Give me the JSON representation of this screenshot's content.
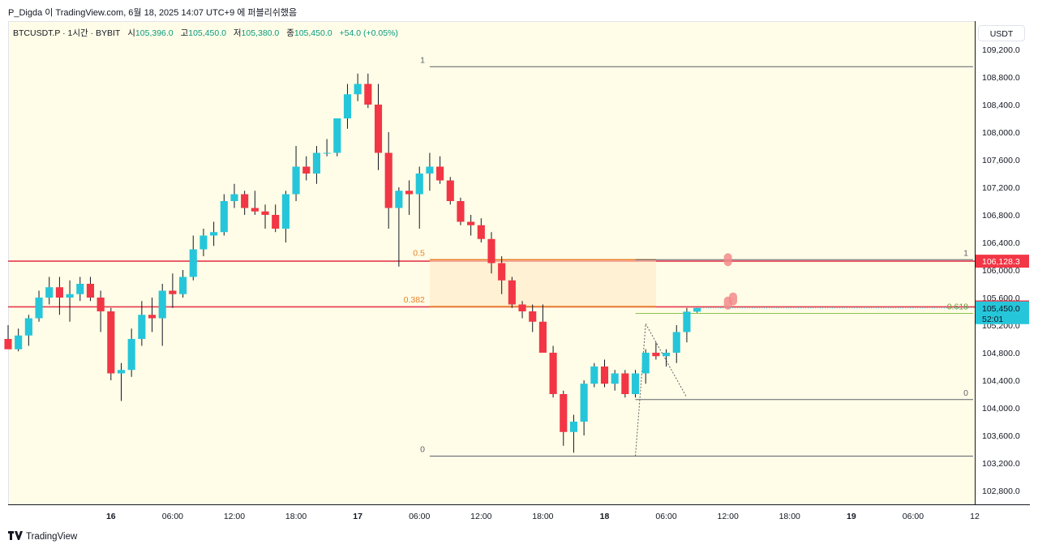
{
  "header": {
    "credit": "P_Digda 이 TradingView.com, 6월 18, 2025 14:07 UTC+9 에 퍼블리쉬했음"
  },
  "legend": {
    "symbol": "BTCUSDT.P · 1시간 · BYBIT",
    "open_label": "시",
    "open": "105,396.0",
    "high_label": "고",
    "high": "105,450.0",
    "low_label": "저",
    "low": "105,380.0",
    "close_label": "종",
    "close": "105,450.0",
    "change": "+54.0 (+0.05%)"
  },
  "currency": "USDT",
  "footer": {
    "logo_text": "TradingView",
    "logo_icon": "tradingview-logo-icon"
  },
  "colors": {
    "up": "#26c6da",
    "down": "#f23645",
    "background": "#fffde7",
    "red_line": "#e5394f",
    "fib_orange": "#e8822a",
    "fib_green": "#8bc34a",
    "price_badge_red": "#f23645",
    "price_badge_cyan": "#26c6da"
  },
  "chart_data": {
    "type": "candlestick",
    "symbol": "BTCUSDT.P",
    "interval": "1시간",
    "exchange": "BYBIT",
    "ylim": [
      102600,
      109600
    ],
    "y_ticks": [
      "109,200.0",
      "108,800.0",
      "108,400.0",
      "108,000.0",
      "107,600.0",
      "107,200.0",
      "106,800.0",
      "106,400.0",
      "106,000.0",
      "105,600.0",
      "105,200.0",
      "104,800.0",
      "104,400.0",
      "104,000.0",
      "103,600.0",
      "103,200.0",
      "102,800.0"
    ],
    "y_tick_values": [
      109200,
      108800,
      108400,
      108000,
      107600,
      107200,
      106800,
      106400,
      106000,
      105600,
      105200,
      104800,
      104400,
      104000,
      103600,
      103200,
      102800
    ],
    "x_range": [
      "2025-06-15 14:00",
      "2025-06-19 12:00"
    ],
    "x_ticks": [
      {
        "time": "2025-06-16 00:00",
        "label": "16",
        "bold": true
      },
      {
        "time": "2025-06-16 06:00",
        "label": "06:00",
        "bold": false
      },
      {
        "time": "2025-06-16 12:00",
        "label": "12:00",
        "bold": false
      },
      {
        "time": "2025-06-16 18:00",
        "label": "18:00",
        "bold": false
      },
      {
        "time": "2025-06-17 00:00",
        "label": "17",
        "bold": true
      },
      {
        "time": "2025-06-17 06:00",
        "label": "06:00",
        "bold": false
      },
      {
        "time": "2025-06-17 12:00",
        "label": "12:00",
        "bold": false
      },
      {
        "time": "2025-06-17 18:00",
        "label": "18:00",
        "bold": false
      },
      {
        "time": "2025-06-18 00:00",
        "label": "18",
        "bold": true
      },
      {
        "time": "2025-06-18 06:00",
        "label": "06:00",
        "bold": false
      },
      {
        "time": "2025-06-18 12:00",
        "label": "12:00",
        "bold": false
      },
      {
        "time": "2025-06-18 18:00",
        "label": "18:00",
        "bold": false
      },
      {
        "time": "2025-06-19 00:00",
        "label": "19",
        "bold": true
      },
      {
        "time": "2025-06-19 06:00",
        "label": "06:00",
        "bold": false
      },
      {
        "time": "2025-06-19 12:00",
        "label": "12",
        "bold": false
      }
    ],
    "candle_start": "2025-06-15 14:00",
    "candles": [
      [
        105000,
        105200,
        104900,
        104850
      ],
      [
        104850,
        105150,
        104820,
        105050
      ],
      [
        105050,
        105350,
        104900,
        105300
      ],
      [
        105300,
        105700,
        105250,
        105600
      ],
      [
        105600,
        105900,
        105500,
        105750
      ],
      [
        105750,
        105900,
        105350,
        105600
      ],
      [
        105600,
        105850,
        105250,
        105650
      ],
      [
        105650,
        105900,
        105550,
        105800
      ],
      [
        105800,
        105900,
        105550,
        105600
      ],
      [
        105600,
        105700,
        105100,
        105400
      ],
      [
        105400,
        105450,
        104400,
        104500
      ],
      [
        104500,
        104650,
        104100,
        104550
      ],
      [
        104550,
        105150,
        104450,
        105000
      ],
      [
        105000,
        105550,
        104900,
        105350
      ],
      [
        105350,
        105600,
        105100,
        105300
      ],
      [
        105300,
        105800,
        104900,
        105700
      ],
      [
        105700,
        105950,
        105450,
        105650
      ],
      [
        105650,
        106000,
        105600,
        105900
      ],
      [
        105900,
        106500,
        105850,
        106300
      ],
      [
        106300,
        106600,
        106200,
        106500
      ],
      [
        106500,
        106700,
        106350,
        106550
      ],
      [
        106550,
        107100,
        106500,
        107000
      ],
      [
        107000,
        107250,
        106900,
        107100
      ],
      [
        107100,
        107150,
        106800,
        106900
      ],
      [
        106900,
        107150,
        106800,
        106850
      ],
      [
        106850,
        106950,
        106600,
        106800
      ],
      [
        106800,
        106950,
        106550,
        106600
      ],
      [
        106600,
        107150,
        106400,
        107100
      ],
      [
        107100,
        107800,
        107000,
        107500
      ],
      [
        107500,
        107650,
        107300,
        107400
      ],
      [
        107400,
        107800,
        107250,
        107700
      ],
      [
        107700,
        107900,
        107650,
        107700
      ],
      [
        107700,
        108200,
        107650,
        108200
      ],
      [
        108200,
        108700,
        108050,
        108550
      ],
      [
        108550,
        108850,
        108450,
        108700
      ],
      [
        108700,
        108850,
        108350,
        108400
      ],
      [
        108400,
        108700,
        107450,
        107700
      ],
      [
        107700,
        108000,
        106600,
        106900
      ],
      [
        106900,
        107200,
        106050,
        107150
      ],
      [
        107150,
        107300,
        106800,
        107100
      ],
      [
        107100,
        107500,
        106600,
        107400
      ],
      [
        107400,
        107700,
        107150,
        107500
      ],
      [
        107500,
        107650,
        107250,
        107300
      ],
      [
        107300,
        107350,
        106950,
        107000
      ],
      [
        107000,
        107050,
        106650,
        106700
      ],
      [
        106700,
        106800,
        106500,
        106650
      ],
      [
        106650,
        106750,
        106400,
        106450
      ],
      [
        106450,
        106550,
        105950,
        106100
      ],
      [
        106100,
        106200,
        105650,
        105850
      ],
      [
        105850,
        105900,
        105450,
        105500
      ],
      [
        105500,
        105550,
        105300,
        105400
      ],
      [
        105400,
        105500,
        105100,
        105250
      ],
      [
        105250,
        105500,
        104800,
        104800
      ],
      [
        104800,
        104900,
        104150,
        104200
      ],
      [
        104200,
        104250,
        103450,
        103650
      ],
      [
        103650,
        103900,
        103350,
        103800
      ],
      [
        103800,
        104400,
        103600,
        104350
      ],
      [
        104350,
        104650,
        104300,
        104600
      ],
      [
        104600,
        104700,
        104300,
        104350
      ],
      [
        104350,
        104550,
        104250,
        104500
      ],
      [
        104500,
        104550,
        104150,
        104200
      ],
      [
        104200,
        104550,
        104150,
        104500
      ],
      [
        104500,
        104850,
        104350,
        104800
      ],
      [
        104800,
        104950,
        104700,
        104750
      ],
      [
        104750,
        104850,
        104600,
        104800
      ],
      [
        104800,
        105200,
        104650,
        105100
      ],
      [
        105100,
        105450,
        104950,
        105396
      ],
      [
        105396,
        105450,
        105380,
        105450
      ]
    ],
    "horizontal_lines": [
      {
        "price": 106128.3,
        "color": "#e5394f",
        "label": "106,128.3"
      },
      {
        "price": 105464.9,
        "color": "#e5394f",
        "label": "105,464.9"
      }
    ],
    "last_price": {
      "label": "105,450.0",
      "countdown": "52:01"
    },
    "fib_levels_left": [
      {
        "ratio": "1",
        "price": 108950
      },
      {
        "ratio": "0.5",
        "price": 106150
      },
      {
        "ratio": "0.382",
        "price": 105470
      },
      {
        "ratio": "0",
        "price": 103300
      }
    ],
    "fib_levels_right": [
      {
        "ratio": "1",
        "price": 106150
      },
      {
        "ratio": "0.618",
        "price": 105370
      },
      {
        "ratio": "0",
        "price": 104120
      }
    ],
    "trend_marks": {
      "from": {
        "time": "2025-06-18 04:00",
        "price": 105220
      },
      "to": {
        "time": "2025-06-18 08:00",
        "price": 104150
      },
      "from_origin": {
        "time": "2025-06-18 03:00",
        "price": 103300
      }
    },
    "markers": [
      {
        "time": "2025-06-18 12:00",
        "price": 106150
      },
      {
        "time": "2025-06-18 12:00",
        "price": 105520
      },
      {
        "time": "2025-06-18 12:30",
        "price": 105580
      }
    ]
  }
}
